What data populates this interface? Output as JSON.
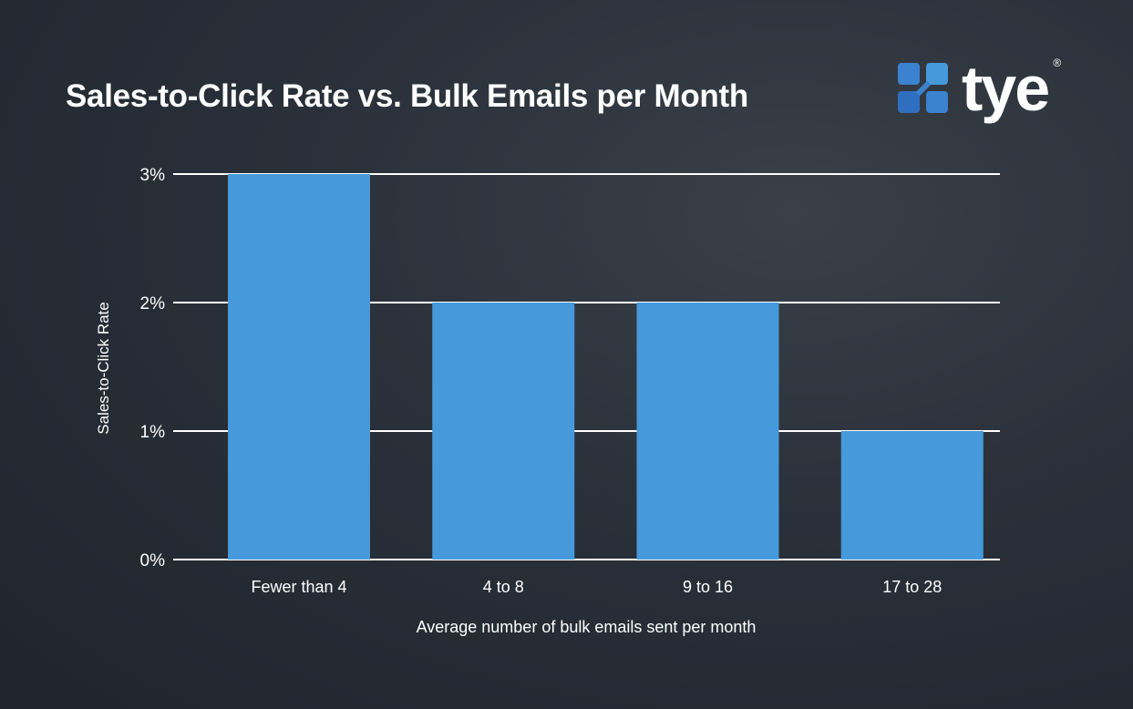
{
  "chart_data": {
    "type": "bar",
    "title": "Sales-to-Click Rate vs. Bulk Emails per Month",
    "xlabel": "Average number of bulk emails sent per month",
    "ylabel": "Sales-to-Click Rate",
    "categories": [
      "Fewer than 4",
      "4 to 8",
      "9 to 16",
      "17 to 28"
    ],
    "values": [
      3,
      2,
      2,
      1
    ],
    "unit": "%",
    "ylim": [
      0,
      3
    ],
    "yticks": [
      0,
      1,
      2,
      3
    ],
    "ytick_labels": [
      "0%",
      "1%",
      "2%",
      "3%"
    ],
    "grid": true,
    "bar_color": "#4699da",
    "grid_color": "#ffffff"
  },
  "logo": {
    "text": "tye",
    "registered": "®",
    "icon": "four-squares-logo-icon",
    "color": "#3b82cf"
  }
}
